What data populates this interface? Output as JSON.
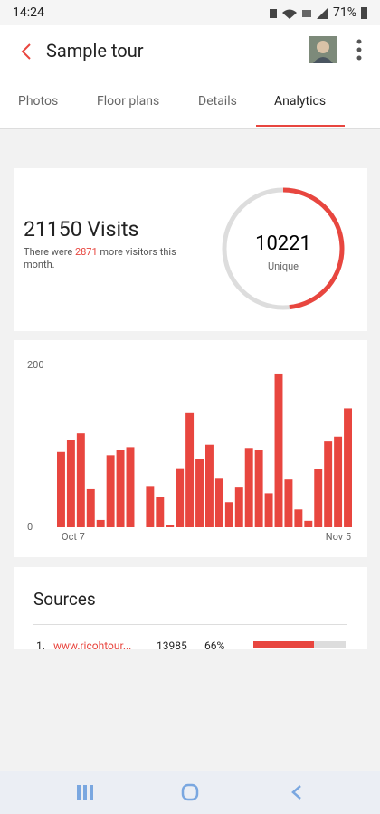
{
  "status_bar": {
    "time": "14:24",
    "battery": "71%"
  },
  "header": {
    "title": "Sample tour"
  },
  "tabs": [
    "Photos",
    "Floor plans",
    "Details",
    "Analytics"
  ],
  "visits_card": {
    "visits": 21150,
    "visits_label": "Visits",
    "text_before": "There were",
    "more": 2871,
    "text_after": "more visitors this month.",
    "unique": 10221,
    "unique_label": "Unique"
  },
  "chart_data": {
    "type": "bar",
    "color": "#e8463f",
    "categories": [
      "Oct 7",
      null,
      null,
      null,
      null,
      null,
      null,
      null,
      null,
      null,
      null,
      null,
      null,
      null,
      null,
      null,
      null,
      null,
      null,
      null,
      null,
      null,
      null,
      null,
      null,
      null,
      null,
      null,
      null,
      "Nov 5"
    ],
    "values": [
      93,
      108,
      116,
      47,
      9,
      89,
      96,
      99,
      0,
      51,
      37,
      3,
      73,
      141,
      84,
      102,
      60,
      31,
      49,
      98,
      96,
      42,
      190,
      59,
      22,
      8,
      72,
      106,
      112,
      147
    ],
    "ylim": [
      0,
      200
    ],
    "yticks": [
      0,
      200
    ],
    "grid": false
  },
  "sources": {
    "title": "Sources",
    "rows": [
      [
        "1.",
        "www.ricohtour...",
        13985,
        "66%",
        66
      ]
    ]
  }
}
